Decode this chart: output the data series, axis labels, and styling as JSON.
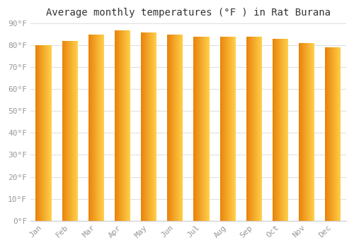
{
  "title": "Average monthly temperatures (°F ) in Rat Burana",
  "months": [
    "Jan",
    "Feb",
    "Mar",
    "Apr",
    "May",
    "Jun",
    "Jul",
    "Aug",
    "Sep",
    "Oct",
    "Nov",
    "Dec"
  ],
  "values": [
    80,
    82,
    85,
    87,
    86,
    85,
    84,
    84,
    84,
    83,
    81,
    79
  ],
  "ylim": [
    0,
    90
  ],
  "yticks": [
    0,
    10,
    20,
    30,
    40,
    50,
    60,
    70,
    80,
    90
  ],
  "bar_color_left": "#E8820A",
  "bar_color_right": "#FFD04A",
  "background_color": "#ffffff",
  "grid_color": "#e0e0e0",
  "title_fontsize": 10,
  "tick_fontsize": 8,
  "bar_width": 0.6
}
